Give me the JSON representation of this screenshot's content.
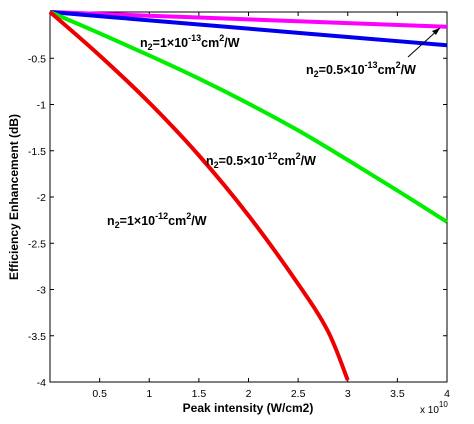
{
  "chart_data": {
    "type": "line",
    "xlabel": "Peak intensity (W/cm2)",
    "ylabel": "Efficiency Enhancement (dB)",
    "x_multiplier_label": "x 10",
    "x_multiplier_exp": "10",
    "xlim": [
      0,
      4
    ],
    "ylim": [
      -4,
      0
    ],
    "x_ticks": [
      "0.5",
      "1",
      "1.5",
      "2",
      "2.5",
      "3",
      "3.5",
      "4"
    ],
    "y_ticks": [
      "-0.5",
      "-1",
      "-1.5",
      "-2",
      "-2.5",
      "-3",
      "-3.5",
      "-4"
    ],
    "series": [
      {
        "color": "#ff00ff",
        "x": [
          0,
          1,
          2,
          3,
          4
        ],
        "y": [
          0,
          -0.04,
          -0.08,
          -0.12,
          -0.16
        ]
      },
      {
        "color": "#0000ee",
        "x": [
          0,
          1,
          2,
          3,
          4
        ],
        "y": [
          0,
          -0.09,
          -0.18,
          -0.27,
          -0.36
        ]
      },
      {
        "color": "#00ee00",
        "x": [
          0,
          0.5,
          1,
          1.5,
          2,
          2.5,
          3,
          3.5,
          4
        ],
        "y": [
          0,
          -0.23,
          -0.47,
          -0.72,
          -0.99,
          -1.28,
          -1.6,
          -1.93,
          -2.27
        ]
      },
      {
        "color": "#ee0000",
        "x": [
          0,
          0.5,
          1,
          1.5,
          2,
          2.5,
          2.8,
          3
        ],
        "y": [
          0,
          -0.47,
          -0.98,
          -1.55,
          -2.2,
          -2.94,
          -3.45,
          -3.98
        ]
      }
    ],
    "annotations": [
      {
        "base": "n",
        "sub": "2",
        "mid": "=1×10",
        "sup": "-13",
        "unit": "cm",
        "usup": "2",
        "tail": "/W"
      },
      {
        "base": "n",
        "sub": "2",
        "mid": "=0.5×10",
        "sup": "-13",
        "unit": "cm",
        "usup": "2",
        "tail": "/W"
      },
      {
        "base": "n",
        "sub": "2",
        "mid": "=0.5×10",
        "sup": "-12",
        "unit": "cm",
        "usup": "2",
        "tail": "/W"
      },
      {
        "base": "n",
        "sub": "2",
        "mid": "=1×10",
        "sup": "-12",
        "unit": "cm",
        "usup": "2",
        "tail": "/W"
      }
    ],
    "grid": false,
    "legend": "none"
  }
}
